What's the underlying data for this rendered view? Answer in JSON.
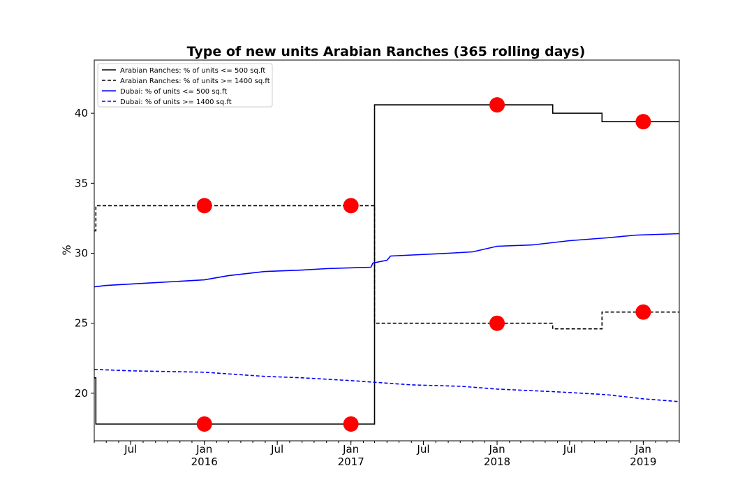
{
  "chart_data": {
    "type": "line",
    "title": "Type of new units Arabian Ranches (365 rolling days)",
    "xlabel": "",
    "ylabel": "%",
    "x_range": [
      "2015-04-01",
      "2019-04-01"
    ],
    "ylim": [
      16.6,
      43.8
    ],
    "y_ticks": [
      20,
      25,
      30,
      35,
      40
    ],
    "x_ticks": [
      {
        "date": "2015-07-01",
        "label": "Jul",
        "sublabel": ""
      },
      {
        "date": "2016-01-01",
        "label": "Jan",
        "sublabel": "2016"
      },
      {
        "date": "2016-07-01",
        "label": "Jul",
        "sublabel": ""
      },
      {
        "date": "2017-01-01",
        "label": "Jan",
        "sublabel": "2017"
      },
      {
        "date": "2017-07-01",
        "label": "Jul",
        "sublabel": ""
      },
      {
        "date": "2018-01-01",
        "label": "Jan",
        "sublabel": "2018"
      },
      {
        "date": "2018-07-01",
        "label": "Jul",
        "sublabel": ""
      },
      {
        "date": "2019-01-01",
        "label": "Jan",
        "sublabel": "2019"
      }
    ],
    "grid": false,
    "legend_position": "top-left",
    "series": [
      {
        "name": "Arabian Ranches: % of units <= 500 sq.ft",
        "color": "#000000",
        "style": "solid",
        "step": true,
        "points": [
          [
            "2015-04-01",
            21.1
          ],
          [
            "2015-04-05",
            17.8
          ],
          [
            "2017-03-01",
            40.6
          ],
          [
            "2018-05-20",
            40.0
          ],
          [
            "2018-09-20",
            39.4
          ],
          [
            "2019-04-01",
            39.4
          ]
        ]
      },
      {
        "name": "Arabian Ranches: % of units >= 1400 sq.ft",
        "color": "#000000",
        "style": "dashed",
        "step": true,
        "points": [
          [
            "2015-04-01",
            31.6
          ],
          [
            "2015-04-05",
            33.4
          ],
          [
            "2017-03-01",
            25.0
          ],
          [
            "2018-05-20",
            24.6
          ],
          [
            "2018-09-20",
            25.8
          ],
          [
            "2019-04-01",
            25.8
          ]
        ]
      },
      {
        "name": "Dubai: % of units <= 500 sq.ft",
        "color": "#0000ff",
        "style": "solid",
        "step": false,
        "points": [
          [
            "2015-04-01",
            27.6
          ],
          [
            "2015-05-01",
            27.7
          ],
          [
            "2015-09-01",
            27.9
          ],
          [
            "2016-01-01",
            28.1
          ],
          [
            "2016-03-01",
            28.4
          ],
          [
            "2016-06-01",
            28.7
          ],
          [
            "2016-09-01",
            28.8
          ],
          [
            "2016-11-01",
            28.9
          ],
          [
            "2017-02-20",
            29.0
          ],
          [
            "2017-02-25",
            29.3
          ],
          [
            "2017-04-01",
            29.5
          ],
          [
            "2017-04-10",
            29.8
          ],
          [
            "2017-09-01",
            30.0
          ],
          [
            "2017-11-01",
            30.1
          ],
          [
            "2018-01-01",
            30.5
          ],
          [
            "2018-04-01",
            30.6
          ],
          [
            "2018-07-01",
            30.9
          ],
          [
            "2018-10-01",
            31.1
          ],
          [
            "2018-12-15",
            31.3
          ],
          [
            "2019-04-01",
            31.4
          ]
        ]
      },
      {
        "name": "Dubai: % of units >= 1400 sq.ft",
        "color": "#0000ff",
        "style": "dashed",
        "step": false,
        "points": [
          [
            "2015-04-01",
            21.7
          ],
          [
            "2015-07-01",
            21.6
          ],
          [
            "2016-01-01",
            21.5
          ],
          [
            "2016-06-01",
            21.2
          ],
          [
            "2016-09-01",
            21.1
          ],
          [
            "2017-01-01",
            20.9
          ],
          [
            "2017-06-01",
            20.6
          ],
          [
            "2017-10-01",
            20.5
          ],
          [
            "2018-01-01",
            20.3
          ],
          [
            "2018-06-01",
            20.1
          ],
          [
            "2018-10-01",
            19.9
          ],
          [
            "2019-01-01",
            19.6
          ],
          [
            "2019-04-01",
            19.4
          ]
        ]
      }
    ],
    "markers": {
      "color": "#ff0000",
      "points": [
        [
          "2016-01-01",
          17.8
        ],
        [
          "2017-01-01",
          17.8
        ],
        [
          "2016-01-01",
          33.4
        ],
        [
          "2017-01-01",
          33.4
        ],
        [
          "2018-01-01",
          40.6
        ],
        [
          "2019-01-01",
          39.4
        ],
        [
          "2018-01-01",
          25.0
        ],
        [
          "2019-01-01",
          25.8
        ]
      ]
    }
  }
}
